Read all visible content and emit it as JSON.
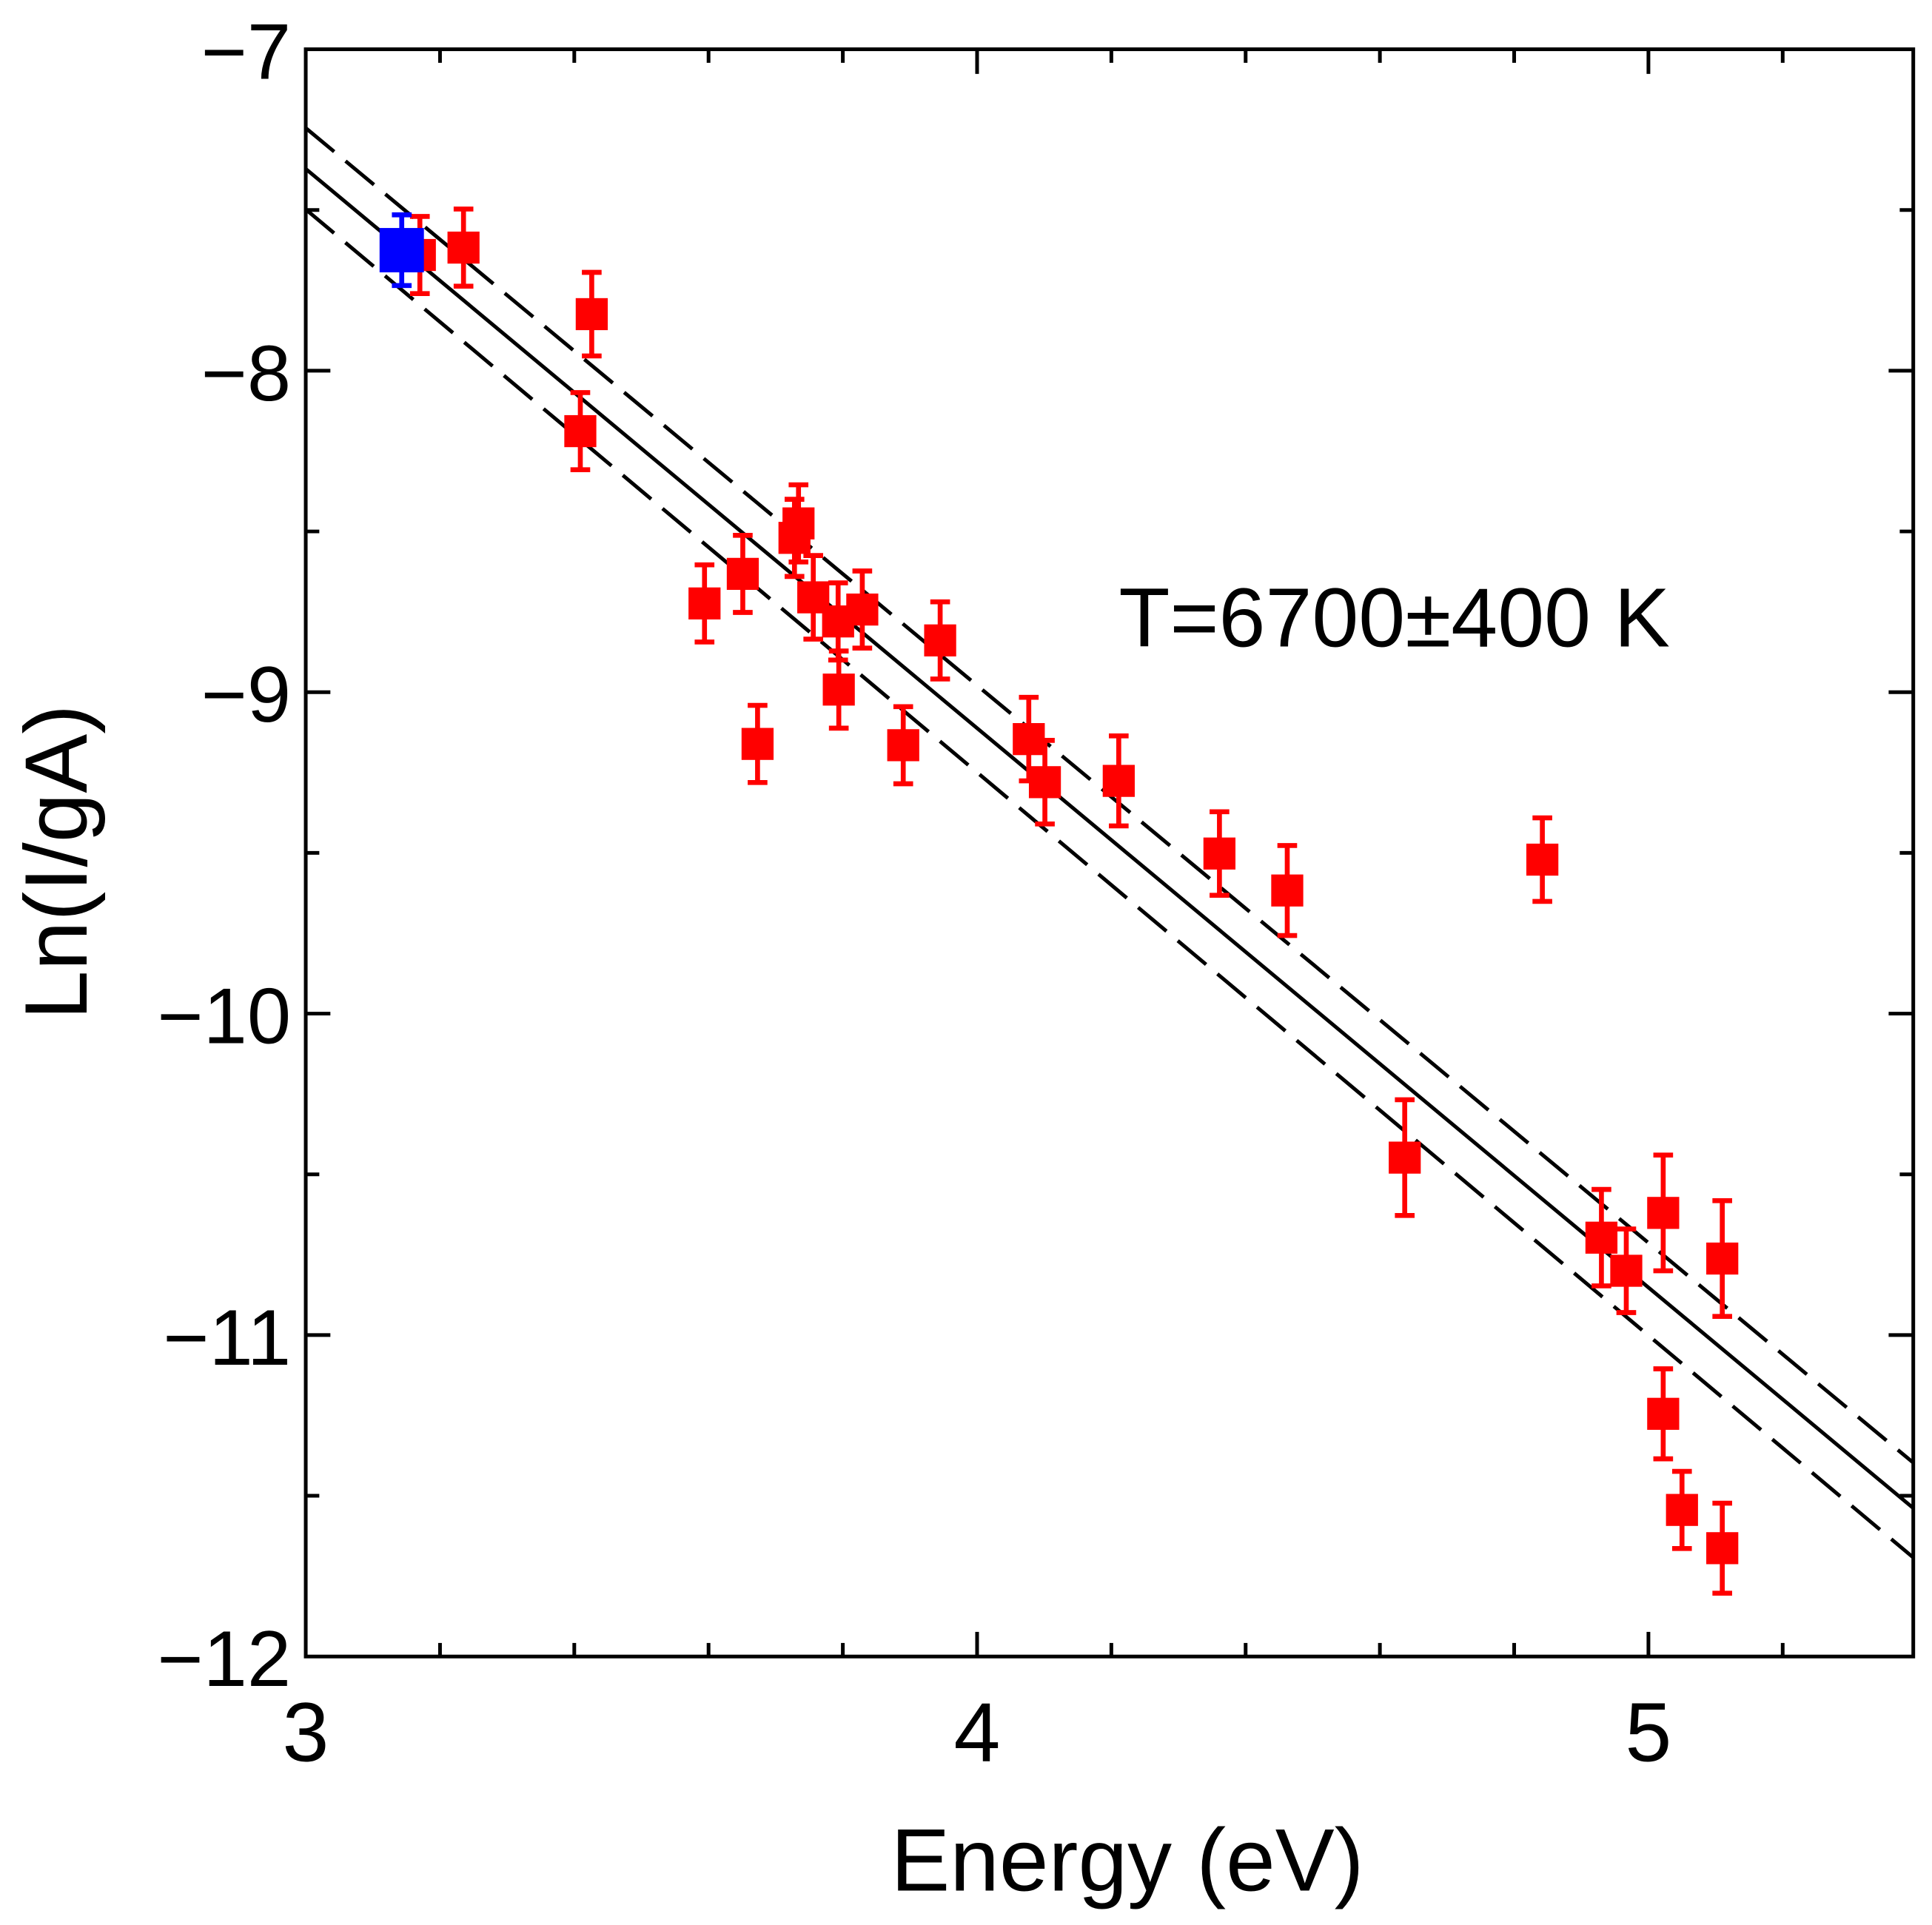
{
  "chart_data": {
    "type": "scatter",
    "xlabel": "Energy (eV)",
    "ylabel": "Ln(I/gA)",
    "xlim": [
      3,
      5.4
    ],
    "ylim": [
      -12,
      -7
    ],
    "x_ticks": [
      "3",
      "4",
      "5"
    ],
    "x_tick_values": [
      3,
      4,
      5
    ],
    "y_ticks": [
      "−7",
      "−8",
      "−9",
      "−10",
      "−11",
      "−12"
    ],
    "y_tick_values": [
      -7,
      -8,
      -9,
      -10,
      -11,
      -12
    ],
    "annotation": "T=6700±400 K",
    "grid": false,
    "colors": {
      "red": "#ff0000",
      "blue": "#0000ff",
      "line": "#000000"
    },
    "series": [
      {
        "name": "red points",
        "color": "#ff0000",
        "points": [
          [
            3.17,
            -7.64,
            0.12
          ],
          [
            3.235,
            -7.617,
            0.12
          ],
          [
            3.426,
            -7.824,
            0.13
          ],
          [
            3.409,
            -8.188,
            0.12
          ],
          [
            3.594,
            -8.724,
            0.12
          ],
          [
            3.651,
            -8.632,
            0.12
          ],
          [
            3.673,
            -9.161,
            0.12
          ],
          [
            3.734,
            -8.475,
            0.12
          ],
          [
            3.728,
            -8.52,
            0.12
          ],
          [
            3.756,
            -8.705,
            0.13
          ],
          [
            3.793,
            -8.78,
            0.12
          ],
          [
            3.829,
            -8.743,
            0.12
          ],
          [
            3.794,
            -8.992,
            0.12
          ],
          [
            3.89,
            -9.165,
            0.12
          ],
          [
            3.945,
            -8.839,
            0.12
          ],
          [
            4.077,
            -9.146,
            0.13
          ],
          [
            4.101,
            -9.28,
            0.13
          ],
          [
            4.211,
            -9.276,
            0.14
          ],
          [
            4.361,
            -9.502,
            0.13
          ],
          [
            4.462,
            -9.617,
            0.14
          ],
          [
            4.842,
            -9.521,
            0.13
          ],
          [
            4.637,
            -10.448,
            0.18
          ],
          [
            4.93,
            -10.697,
            0.15
          ],
          [
            4.967,
            -10.8,
            0.13
          ],
          [
            5.022,
            -10.62,
            0.18
          ],
          [
            5.022,
            -11.245,
            0.14
          ],
          [
            5.05,
            -11.544,
            0.12
          ],
          [
            5.11,
            -10.762,
            0.18
          ],
          [
            5.11,
            -11.663,
            0.14
          ]
        ]
      },
      {
        "name": "blue point",
        "color": "#0000ff",
        "points": [
          [
            3.143,
            -7.625,
            0.11
          ]
        ]
      }
    ],
    "fit": {
      "slope": -1.74,
      "intercept_at_3": -7.372
    },
    "confidence_upper": {
      "y_at_3": -7.245,
      "y_at_end": -11.398
    },
    "confidence_lower": {
      "y_at_3": -7.498,
      "y_at_end": -11.693
    }
  }
}
